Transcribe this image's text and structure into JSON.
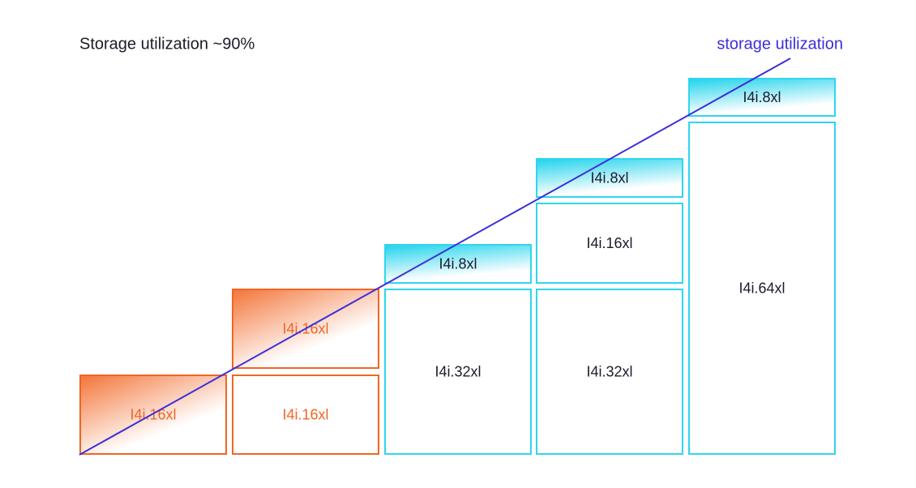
{
  "header": {
    "title": "Storage utilization ~90%",
    "line_label": "storage utilization"
  },
  "columns": [
    {
      "boxes": [
        {
          "label": "I4i.16xl"
        }
      ]
    },
    {
      "boxes": [
        {
          "label": "I4i.16xl"
        },
        {
          "label": "I4i.16xl"
        }
      ]
    },
    {
      "boxes": [
        {
          "label": "I4i.8xl"
        },
        {
          "label": "I4i.32xl"
        }
      ]
    },
    {
      "boxes": [
        {
          "label": "I4i.8xl"
        },
        {
          "label": "I4i.16xl"
        },
        {
          "label": "I4i.32xl"
        }
      ]
    },
    {
      "boxes": [
        {
          "label": "I4i.8xl"
        },
        {
          "label": "I4i.64xl"
        }
      ]
    }
  ]
}
